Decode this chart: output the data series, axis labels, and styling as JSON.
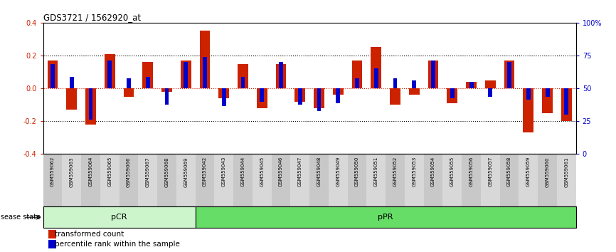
{
  "title": "GDS3721 / 1562920_at",
  "samples": [
    "GSM559062",
    "GSM559063",
    "GSM559064",
    "GSM559065",
    "GSM559066",
    "GSM559067",
    "GSM559068",
    "GSM559069",
    "GSM559042",
    "GSM559043",
    "GSM559044",
    "GSM559045",
    "GSM559046",
    "GSM559047",
    "GSM559048",
    "GSM559049",
    "GSM559050",
    "GSM559051",
    "GSM559052",
    "GSM559053",
    "GSM559054",
    "GSM559055",
    "GSM559056",
    "GSM559057",
    "GSM559058",
    "GSM559059",
    "GSM559060",
    "GSM559061"
  ],
  "transformed_count": [
    0.17,
    -0.13,
    -0.22,
    0.21,
    -0.05,
    0.16,
    -0.02,
    0.17,
    0.35,
    -0.06,
    0.15,
    -0.12,
    0.15,
    -0.08,
    -0.12,
    -0.04,
    0.17,
    0.25,
    -0.1,
    -0.04,
    0.17,
    -0.09,
    0.04,
    0.05,
    0.17,
    -0.27,
    -0.15,
    -0.2
  ],
  "percentile_rank": [
    0.15,
    0.07,
    -0.19,
    0.17,
    0.06,
    0.07,
    -0.1,
    0.16,
    0.19,
    -0.11,
    0.07,
    -0.08,
    0.16,
    -0.1,
    -0.14,
    -0.09,
    0.06,
    0.12,
    0.06,
    0.05,
    0.17,
    -0.06,
    0.04,
    -0.05,
    0.16,
    -0.07,
    -0.05,
    -0.16
  ],
  "pCR_count": 8,
  "pPR_count": 20,
  "ylim": [
    -0.4,
    0.4
  ],
  "yticks_left": [
    -0.4,
    -0.2,
    0.0,
    0.2,
    0.4
  ],
  "right_tick_positions": [
    -0.4,
    -0.2,
    0.0,
    0.2,
    0.4
  ],
  "right_tick_labels": [
    "0",
    "25",
    "50",
    "75",
    "100%"
  ],
  "red_color": "#cc2200",
  "blue_color": "#0000cc",
  "bg_color": "#ffffff",
  "pcr_color": "#ccf5cc",
  "ppr_color": "#66dd66",
  "tick_bg_color": "#cccccc",
  "legend_tc": "transformed count",
  "legend_pr": "percentile rank within the sample"
}
